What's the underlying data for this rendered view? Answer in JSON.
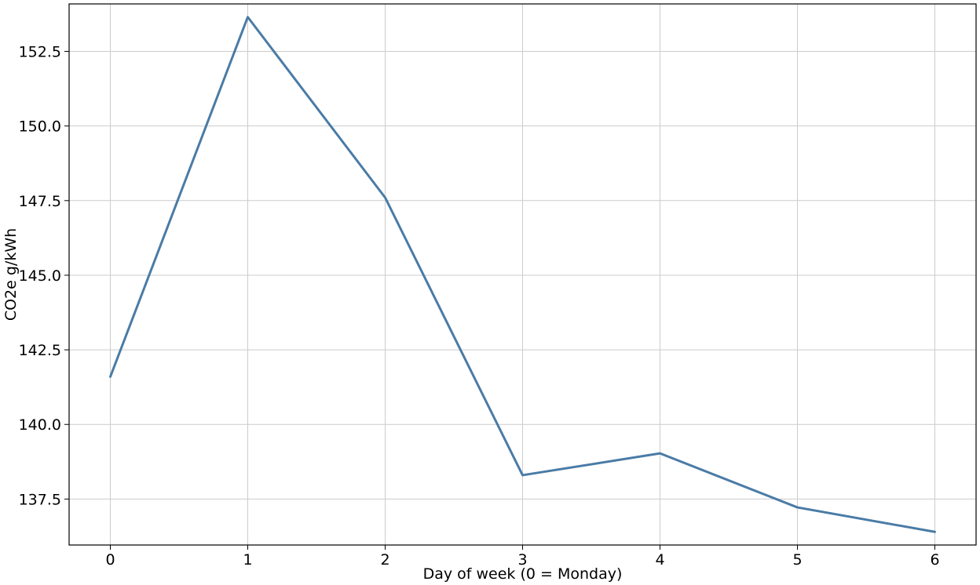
{
  "chart_data": {
    "type": "line",
    "title": "",
    "xlabel": "Day of week (0 = Monday)",
    "ylabel": "CO2e g/kWh",
    "x": [
      0,
      1,
      2,
      3,
      4,
      5,
      6
    ],
    "series": [
      {
        "values": [
          141.6,
          153.65,
          147.6,
          138.3,
          139.03,
          137.22,
          136.4
        ]
      }
    ],
    "xlim": [
      -0.3,
      6.3
    ],
    "ylim": [
      135.96,
      154.09
    ],
    "xticks": [
      "0",
      "1",
      "2",
      "3",
      "4",
      "5",
      "6"
    ],
    "yticks": [
      "137.5",
      "140.0",
      "142.5",
      "145.0",
      "147.5",
      "150.0",
      "152.5"
    ],
    "grid": true,
    "legend": "none",
    "colors": {
      "line": "#4a7ba6",
      "grid": "#cccccc",
      "axis": "#000000"
    }
  }
}
